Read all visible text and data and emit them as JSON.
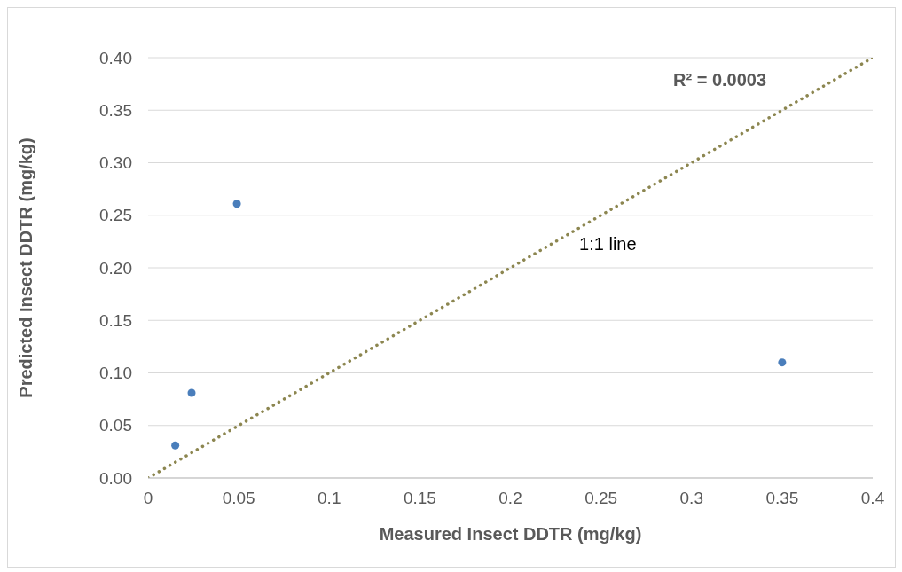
{
  "chart_data": {
    "type": "scatter",
    "xlabel": "Measured Insect DDTR (mg/kg)",
    "ylabel": "Predicted Insect DDTR (mg/kg)",
    "x": [
      0.015,
      0.024,
      0.049,
      0.35
    ],
    "series": [
      {
        "color": "#4a7ebb",
        "marker": "circle",
        "values": [
          0.031,
          0.081,
          0.261,
          0.11
        ]
      },
      {
        "type": "line",
        "color": "#8c8650",
        "line_style": "dotted",
        "marker": "none",
        "x": [
          0,
          0.4
        ],
        "values": [
          0,
          0.4
        ]
      }
    ],
    "xlim": [
      0,
      0.4
    ],
    "xticks": [
      0,
      0.05,
      0.1,
      0.15,
      0.2,
      0.25,
      0.3,
      0.35,
      0.4
    ],
    "ylim": [
      0,
      0.4
    ],
    "yticks": [
      {
        "value": 0,
        "label": "0.00"
      },
      {
        "value": 0.05,
        "label": "0.05"
      },
      {
        "value": 0.1,
        "label": "0.10"
      },
      {
        "value": 0.15,
        "label": "0.15"
      },
      {
        "value": 0.2,
        "label": "0.20"
      },
      {
        "value": 0.25,
        "label": "0.25"
      },
      {
        "value": 0.3,
        "label": "0.30"
      },
      {
        "value": 0.35,
        "label": "0.35"
      },
      {
        "value": 0.4,
        "label": "0.40"
      }
    ],
    "grid": "y",
    "legend": false,
    "annotations": [
      "R² = 0.0003",
      "1:1 line"
    ]
  }
}
